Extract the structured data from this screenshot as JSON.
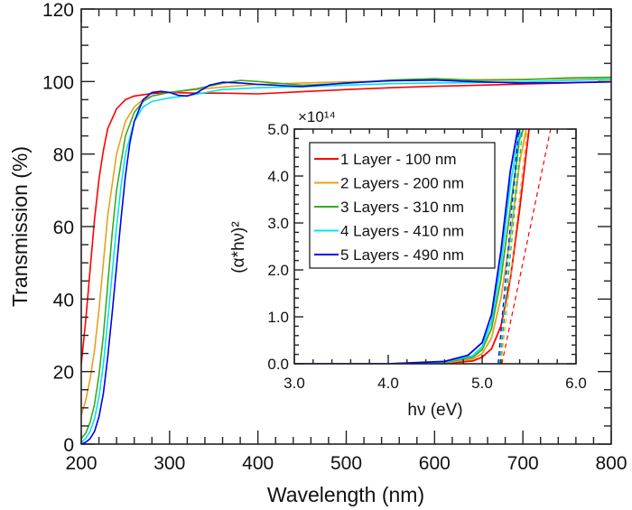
{
  "chart_data": [
    {
      "type": "line",
      "title": "",
      "xlabel": "Wavelength (nm)",
      "ylabel": "Transmission (%)",
      "xlim": [
        200,
        800
      ],
      "ylim": [
        0,
        120
      ],
      "xticks": [
        200,
        300,
        400,
        500,
        600,
        700,
        800
      ],
      "xtick_labels": [
        "200",
        "300",
        "400",
        "500",
        "600",
        "700",
        "800"
      ],
      "yticks": [
        0,
        20,
        40,
        60,
        80,
        100,
        120
      ],
      "ytick_labels": [
        "0",
        "20",
        "40",
        "60",
        "80",
        "100",
        "120"
      ],
      "grid": false,
      "series": [
        {
          "name": "1 Layer - 100 nm",
          "color": "#ff0000",
          "x": [
            200,
            205,
            210,
            215,
            220,
            225,
            230,
            240,
            250,
            260,
            280,
            300,
            330,
            360,
            400,
            450,
            500,
            550,
            600,
            650,
            700,
            750,
            800
          ],
          "y": [
            22,
            34,
            48,
            62,
            73,
            81,
            87,
            92.5,
            95,
            96,
            96.7,
            97,
            96.8,
            96.8,
            96.6,
            97.2,
            97.8,
            98.3,
            98.7,
            99.0,
            99.3,
            99.6,
            99.9
          ]
        },
        {
          "name": "2 Layers - 200 nm",
          "color": "#e8a020",
          "x": [
            200,
            205,
            210,
            215,
            220,
            225,
            230,
            240,
            250,
            260,
            270,
            280,
            300,
            330,
            360,
            400,
            450,
            500,
            550,
            600,
            650,
            700,
            750,
            800
          ],
          "y": [
            8,
            12,
            18,
            26,
            37,
            50,
            63,
            80,
            89,
            93,
            95,
            96,
            97,
            97.8,
            98.5,
            99.2,
            99.6,
            99.9,
            100.2,
            100.4,
            100.5,
            100.6,
            100.8,
            101
          ]
        },
        {
          "name": "3 Layers - 310 nm",
          "color": "#3aaa1e",
          "x": [
            200,
            205,
            210,
            215,
            220,
            225,
            230,
            235,
            240,
            250,
            260,
            270,
            280,
            300,
            330,
            360,
            380,
            400,
            450,
            500,
            550,
            600,
            650,
            700,
            750,
            800
          ],
          "y": [
            1.5,
            3,
            6,
            11,
            19,
            30,
            44,
            58,
            70,
            85,
            91.5,
            94.5,
            96,
            97,
            98,
            99.5,
            100.3,
            100,
            99,
            99.5,
            100.4,
            100.8,
            100.3,
            100.5,
            101,
            101.2
          ]
        },
        {
          "name": "4 Layers - 410 nm",
          "color": "#00e5ee",
          "x": [
            200,
            205,
            210,
            215,
            220,
            225,
            230,
            235,
            240,
            245,
            250,
            260,
            270,
            280,
            300,
            310,
            330,
            360,
            400,
            450,
            500,
            550,
            600,
            650,
            700,
            750,
            800
          ],
          "y": [
            0.5,
            1.5,
            3.5,
            7,
            13,
            22,
            34,
            47,
            60,
            71,
            80,
            89,
            93,
            94.5,
            95.5,
            95.8,
            96.5,
            97.8,
            98.3,
            98.6,
            99.0,
            99.4,
            99.6,
            99.7,
            99.9,
            100.3,
            100.6
          ]
        },
        {
          "name": "5 Layers - 490 nm",
          "color": "#0000ee",
          "x": [
            200,
            205,
            210,
            215,
            220,
            225,
            230,
            235,
            240,
            245,
            250,
            255,
            260,
            270,
            280,
            290,
            300,
            310,
            320,
            330,
            345,
            360,
            380,
            400,
            450,
            500,
            550,
            600,
            650,
            700,
            750,
            800
          ],
          "y": [
            0,
            0.5,
            1.5,
            3.5,
            7.5,
            14,
            24,
            36,
            49,
            62,
            74,
            83,
            89,
            95,
            97,
            97.3,
            97.0,
            96.2,
            96.0,
            96.8,
            99.0,
            99.8,
            99.6,
            99.2,
            98.6,
            99.6,
            100.2,
            100.4,
            99.9,
            99.6,
            99.7,
            99.9
          ]
        }
      ]
    },
    {
      "type": "line",
      "title": "",
      "xlabel": "hν (eV)",
      "ylabel": "(α*hν)²",
      "y_multiplier": "×10¹⁴",
      "xlim": [
        3.0,
        6.0
      ],
      "ylim": [
        0,
        5.0
      ],
      "xticks": [
        3.0,
        4.0,
        5.0,
        6.0
      ],
      "xtick_labels": [
        "3.0",
        "4.0",
        "5.0",
        "6.0"
      ],
      "yticks": [
        0,
        1.0,
        2.0,
        3.0,
        4.0,
        5.0
      ],
      "ytick_labels": [
        "0.0",
        "1.0",
        "2.0",
        "3.0",
        "4.0",
        "5.0"
      ],
      "grid": false,
      "legend": {
        "placement": "top-left",
        "entries": [
          "1 Layer - 100 nm",
          "2 Layers - 200 nm",
          "3 Layers - 310 nm",
          "4 Layers - 410 nm",
          "5 Layers - 490 nm"
        ]
      },
      "series": [
        {
          "name": "1 Layer - 100 nm",
          "color": "#ff0000",
          "x": [
            3.0,
            4.0,
            4.6,
            4.9,
            5.0,
            5.1,
            5.2,
            5.3,
            5.4,
            5.5
          ],
          "y": [
            0,
            0,
            0.01,
            0.06,
            0.14,
            0.32,
            0.8,
            1.8,
            3.3,
            5.0
          ],
          "fit_x": [
            5.21,
            5.73
          ],
          "fit_y": [
            0,
            5.0
          ]
        },
        {
          "name": "2 Layers - 200 nm",
          "color": "#e8a020",
          "x": [
            3.0,
            4.0,
            4.6,
            4.9,
            5.0,
            5.1,
            5.2,
            5.3,
            5.4,
            5.47
          ],
          "y": [
            0,
            0,
            0.02,
            0.1,
            0.22,
            0.55,
            1.4,
            2.7,
            4.3,
            5.0
          ],
          "fit_x": [
            5.2,
            5.48
          ],
          "fit_y": [
            0,
            5.0
          ]
        },
        {
          "name": "3 Layers - 310 nm",
          "color": "#3aaa1e",
          "x": [
            3.0,
            4.0,
            4.6,
            4.9,
            5.0,
            5.1,
            5.2,
            5.3,
            5.4,
            5.44
          ],
          "y": [
            0,
            0,
            0.03,
            0.14,
            0.3,
            0.75,
            1.8,
            3.3,
            4.8,
            5.0
          ],
          "fit_x": [
            5.19,
            5.43
          ],
          "fit_y": [
            0,
            5.0
          ]
        },
        {
          "name": "4 Layers - 410 nm",
          "color": "#00e5ee",
          "x": [
            3.0,
            4.0,
            4.6,
            4.9,
            5.0,
            5.1,
            5.2,
            5.3,
            5.4,
            5.43
          ],
          "y": [
            0,
            0,
            0.04,
            0.17,
            0.36,
            0.9,
            2.1,
            3.8,
            5.0,
            5.0
          ],
          "fit_x": [
            5.18,
            5.41
          ],
          "fit_y": [
            0,
            5.0
          ]
        },
        {
          "name": "5 Layers - 490 nm",
          "color": "#0000ee",
          "x": [
            3.0,
            4.0,
            4.6,
            4.85,
            5.0,
            5.1,
            5.2,
            5.3,
            5.38
          ],
          "y": [
            0,
            0,
            0.05,
            0.18,
            0.45,
            1.05,
            2.4,
            4.1,
            5.0
          ],
          "fit_x": [
            5.17,
            5.39
          ],
          "fit_y": [
            0,
            5.0
          ]
        }
      ]
    }
  ]
}
